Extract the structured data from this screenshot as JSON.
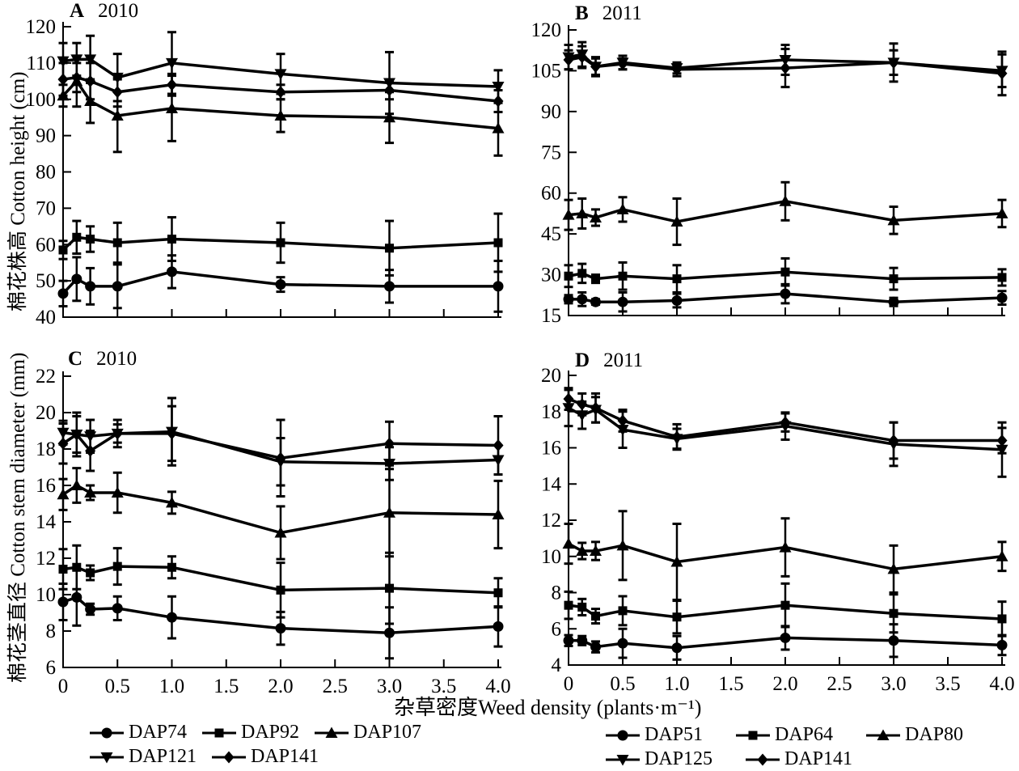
{
  "figure": {
    "xlabel": "杂草密度Weed density (plants·m⁻¹)",
    "ylabel_top": "棉花株高 Cotton height (cm)",
    "ylabel_bottom": "棉花茎直径 Cotton stem diameter (mm)",
    "colors": {
      "foreground": "#000000",
      "background": "#ffffff"
    }
  },
  "chart_data": [
    {
      "id": "A",
      "panel_letter": "A",
      "year": "2010",
      "type": "line",
      "y_axis": "Cotton height (cm)",
      "xlim": [
        0,
        4
      ],
      "xticks": [
        0,
        0.5,
        1,
        1.5,
        2,
        2.5,
        3,
        3.5,
        4
      ],
      "xtick_labels": null,
      "ylim": [
        40,
        120
      ],
      "yticks": [
        40,
        50,
        60,
        70,
        80,
        90,
        100,
        110,
        120
      ],
      "x": [
        0,
        0.125,
        0.25,
        0.5,
        1,
        2,
        3,
        4
      ],
      "series": [
        {
          "name": "DAP74",
          "marker": "circle",
          "values": [
            46.5,
            50.5,
            48.5,
            48.5,
            52.5,
            49,
            48.5,
            48.5
          ],
          "errors": [
            3.5,
            6,
            5,
            6,
            4.5,
            2,
            4.5,
            7
          ]
        },
        {
          "name": "DAP92",
          "marker": "square",
          "values": [
            58.5,
            62,
            61.5,
            60.5,
            61.5,
            60.5,
            59,
            60.5
          ],
          "errors": [
            2.5,
            4.5,
            3.5,
            5.5,
            6,
            5.5,
            7.5,
            8
          ]
        },
        {
          "name": "DAP107",
          "marker": "triangle-up",
          "values": [
            101,
            105,
            99.5,
            95.5,
            97.5,
            95.5,
            95,
            92
          ],
          "errors": [
            3,
            7,
            6,
            10,
            9,
            4.5,
            7,
            7.5
          ]
        },
        {
          "name": "DAP121",
          "marker": "triangle-down",
          "values": [
            110.5,
            111,
            111,
            106,
            110,
            107,
            104.5,
            103.5
          ],
          "errors": [
            5,
            4.5,
            6.5,
            6.5,
            8.5,
            5.5,
            8.5,
            4.5
          ]
        },
        {
          "name": "DAP141",
          "marker": "diamond",
          "values": [
            105.5,
            106,
            105,
            102,
            104,
            102,
            102.5,
            99.5
          ],
          "errors": [
            4.5,
            4,
            5,
            4,
            3,
            2,
            2.5,
            3
          ]
        }
      ]
    },
    {
      "id": "B",
      "panel_letter": "B",
      "year": "2011",
      "type": "line",
      "y_axis": "Cotton height (cm)",
      "xlim": [
        0,
        4
      ],
      "xticks": [
        0,
        0.5,
        1,
        1.5,
        2,
        2.5,
        3,
        3.5,
        4
      ],
      "xtick_labels": null,
      "ylim": [
        15,
        120
      ],
      "yticks": [
        15,
        30,
        45,
        60,
        75,
        90,
        105,
        120
      ],
      "x": [
        0,
        0.125,
        0.25,
        0.5,
        1,
        2,
        3,
        4
      ],
      "series": [
        {
          "name": "DAP51",
          "marker": "circle",
          "values": [
            21,
            21,
            20,
            20,
            20.5,
            23,
            20,
            21.5
          ],
          "errors": [
            1.5,
            2.5,
            1,
            3.5,
            2.5,
            3.5,
            1.5,
            2.5
          ]
        },
        {
          "name": "DAP64",
          "marker": "square",
          "values": [
            29.5,
            30.5,
            28.5,
            29.5,
            28.5,
            31,
            28.5,
            29
          ],
          "errors": [
            4,
            3.5,
            1.5,
            5,
            5,
            5,
            4,
            3
          ]
        },
        {
          "name": "DAP80",
          "marker": "triangle-up",
          "values": [
            52,
            52.5,
            51,
            54,
            49.5,
            57,
            50,
            52.5
          ],
          "errors": [
            5.5,
            5.5,
            3,
            4.5,
            8.5,
            7,
            5,
            5
          ]
        },
        {
          "name": "DAP125",
          "marker": "triangle-down",
          "values": [
            110,
            111,
            106.5,
            108,
            106,
            109,
            108,
            105
          ],
          "errors": [
            4.5,
            4.5,
            3.5,
            2.5,
            2,
            5.5,
            7,
            6
          ]
        },
        {
          "name": "DAP141",
          "marker": "diamond",
          "values": [
            109,
            110,
            106.5,
            107.5,
            105.5,
            106,
            108,
            104
          ],
          "errors": [
            3.5,
            4,
            3,
            2,
            2.5,
            7,
            4.5,
            8
          ]
        }
      ]
    },
    {
      "id": "C",
      "panel_letter": "C",
      "year": "2010",
      "type": "line",
      "y_axis": "Cotton stem diameter (mm)",
      "xlim": [
        0,
        4
      ],
      "xticks": [
        0,
        0.5,
        1,
        1.5,
        2,
        2.5,
        3,
        3.5,
        4
      ],
      "xtick_labels": [
        "0",
        "0.5",
        "1.0",
        "1.5",
        "2.0",
        "2.5",
        "3.0",
        "3.5",
        "4.0"
      ],
      "ylim": [
        6,
        22
      ],
      "yticks": [
        6,
        8,
        10,
        12,
        14,
        16,
        18,
        20,
        22
      ],
      "x": [
        0,
        0.125,
        0.25,
        0.5,
        1,
        2,
        3,
        4
      ],
      "series": [
        {
          "name": "DAP74",
          "marker": "circle",
          "values": [
            9.6,
            9.85,
            9.2,
            9.25,
            8.75,
            8.15,
            7.9,
            8.25
          ],
          "errors": [
            1.0,
            1.55,
            0.3,
            0.65,
            1.15,
            0.9,
            1.4,
            1.1
          ]
        },
        {
          "name": "DAP92",
          "marker": "square",
          "values": [
            11.4,
            11.5,
            11.2,
            11.55,
            11.5,
            10.25,
            10.35,
            10.1
          ],
          "errors": [
            1.1,
            1.2,
            0.4,
            1.0,
            0.6,
            1.5,
            1.95,
            0.8
          ]
        },
        {
          "name": "DAP107",
          "marker": "triangle-up",
          "values": [
            15.5,
            16.0,
            15.6,
            15.6,
            15.05,
            13.4,
            14.5,
            14.4
          ],
          "errors": [
            0.85,
            0.95,
            0.4,
            1.1,
            0.6,
            1.45,
            2.4,
            1.85
          ]
        },
        {
          "name": "DAP121",
          "marker": "triangle-down",
          "values": [
            18.9,
            18.8,
            18.7,
            18.85,
            18.95,
            17.3,
            17.2,
            17.4
          ],
          "errors": [
            0.65,
            1.2,
            0.9,
            0.75,
            1.85,
            1.3,
            0.9,
            0.8
          ]
        },
        {
          "name": "DAP141",
          "marker": "diamond",
          "values": [
            18.3,
            18.8,
            17.9,
            18.85,
            18.85,
            17.5,
            18.3,
            18.2
          ],
          "errors": [
            1.1,
            1.0,
            1.1,
            0.5,
            1.5,
            2.1,
            1.2,
            1.6
          ]
        }
      ]
    },
    {
      "id": "D",
      "panel_letter": "D",
      "year": "2011",
      "type": "line",
      "y_axis": "Cotton stem diameter (mm)",
      "xlim": [
        0,
        4
      ],
      "xticks": [
        0,
        0.5,
        1,
        1.5,
        2,
        2.5,
        3,
        3.5,
        4
      ],
      "xtick_labels": [
        "0",
        "0.5",
        "1.0",
        "1.5",
        "2.0",
        "2.5",
        "3.0",
        "3.5",
        "4.0"
      ],
      "ylim": [
        4,
        20
      ],
      "yticks": [
        4,
        6,
        8,
        10,
        12,
        14,
        16,
        18,
        20
      ],
      "x": [
        0,
        0.125,
        0.25,
        0.5,
        1,
        2,
        3,
        4
      ],
      "series": [
        {
          "name": "DAP51",
          "marker": "circle",
          "values": [
            5.35,
            5.35,
            5.0,
            5.2,
            4.95,
            5.5,
            5.35,
            5.1
          ],
          "errors": [
            0.3,
            0.25,
            0.3,
            0.8,
            0.65,
            0.65,
            0.9,
            0.55
          ]
        },
        {
          "name": "DAP64",
          "marker": "square",
          "values": [
            7.3,
            7.2,
            6.7,
            7.0,
            6.65,
            7.3,
            6.85,
            6.55
          ],
          "errors": [
            0.75,
            0.45,
            0.4,
            0.8,
            0.9,
            1.2,
            1.05,
            0.95
          ]
        },
        {
          "name": "DAP80",
          "marker": "triangle-up",
          "values": [
            10.7,
            10.3,
            10.3,
            10.6,
            9.7,
            10.5,
            9.3,
            10.0
          ],
          "errors": [
            1.1,
            0.45,
            0.5,
            1.9,
            2.1,
            1.6,
            1.3,
            0.8
          ]
        },
        {
          "name": "DAP125",
          "marker": "triangle-down",
          "values": [
            18.2,
            17.8,
            18.1,
            17.0,
            16.5,
            17.2,
            16.2,
            15.9
          ],
          "errors": [
            1.0,
            0.75,
            0.7,
            1.0,
            0.55,
            0.75,
            1.2,
            1.5
          ]
        },
        {
          "name": "DAP141",
          "marker": "diamond",
          "values": [
            18.7,
            18.4,
            18.2,
            17.5,
            16.6,
            17.4,
            16.4,
            16.4
          ],
          "errors": [
            0.6,
            0.6,
            0.8,
            0.6,
            0.7,
            0.5,
            1.0,
            0.7
          ]
        }
      ]
    }
  ],
  "legend_left": {
    "row_breaks": [
      3,
      2
    ],
    "items": [
      {
        "label": "DAP74",
        "marker": "circle"
      },
      {
        "label": "DAP92",
        "marker": "square"
      },
      {
        "label": "DAP107",
        "marker": "triangle-up"
      },
      {
        "label": "DAP121",
        "marker": "triangle-down"
      },
      {
        "label": "DAP141",
        "marker": "diamond"
      }
    ]
  },
  "legend_right": {
    "row_breaks": [
      3,
      2
    ],
    "items": [
      {
        "label": "DAP51",
        "marker": "circle"
      },
      {
        "label": "DAP64",
        "marker": "square"
      },
      {
        "label": "DAP80",
        "marker": "triangle-up"
      },
      {
        "label": "DAP125",
        "marker": "triangle-down"
      },
      {
        "label": "DAP141",
        "marker": "diamond"
      }
    ]
  }
}
